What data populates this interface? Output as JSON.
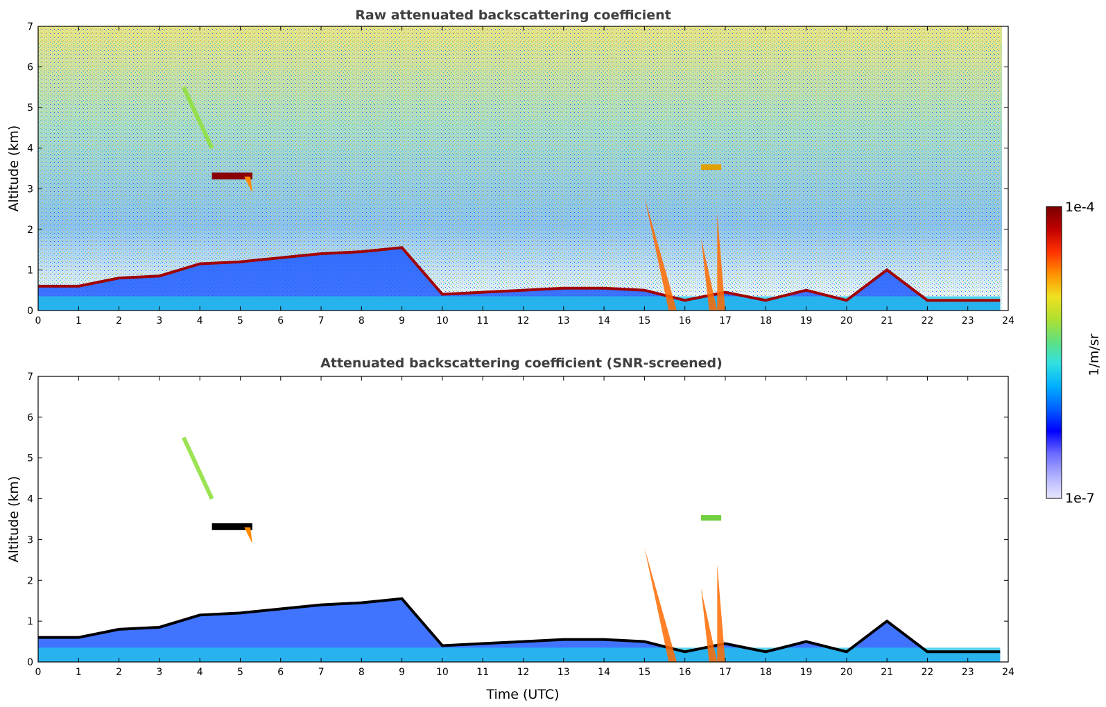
{
  "chart_data": [
    {
      "type": "heatmap",
      "title": "Raw attenuated backscattering coefficient",
      "xlabel": "",
      "ylabel": "Altitude (km)",
      "xlim": [
        0,
        24
      ],
      "ylim": [
        0,
        7
      ],
      "xticks": [
        "0",
        "1",
        "2",
        "3",
        "4",
        "5",
        "6",
        "7",
        "8",
        "9",
        "10",
        "11",
        "12",
        "13",
        "14",
        "15",
        "16",
        "17",
        "18",
        "19",
        "20",
        "21",
        "22",
        "23",
        "24"
      ],
      "yticks": [
        "0",
        "1",
        "2",
        "3",
        "4",
        "5",
        "6",
        "7"
      ],
      "features": [
        {
          "name": "boundary layer top",
          "time_utc": [
            0,
            1,
            2,
            3,
            4,
            5,
            6,
            7,
            8,
            9,
            10,
            11,
            12,
            13,
            14,
            15,
            16,
            17,
            18,
            19,
            20,
            21,
            22,
            23,
            23.8
          ],
          "altitude_km": [
            0.6,
            0.6,
            0.8,
            0.85,
            1.15,
            1.2,
            1.3,
            1.4,
            1.45,
            1.55,
            0.4,
            0.45,
            0.5,
            0.55,
            0.55,
            0.5,
            0.25,
            0.45,
            0.25,
            0.5,
            0.25,
            1.0,
            0.25,
            0.25,
            0.25
          ]
        },
        {
          "name": "cloud layer",
          "time_utc": [
            4.3,
            5.3
          ],
          "altitude_km": [
            3.3,
            3.4
          ]
        },
        {
          "name": "ice cloud fall streak",
          "time_utc": [
            3.6,
            4.3
          ],
          "altitude_km": [
            5.5,
            4.0
          ]
        },
        {
          "name": "cloud layer",
          "time_utc": [
            16.4,
            16.9
          ],
          "altitude_km": [
            3.4,
            3.6
          ]
        }
      ]
    },
    {
      "type": "heatmap",
      "title": "Attenuated backscattering coefficient (SNR-screened)",
      "xlabel": "Time (UTC)",
      "ylabel": "Altitude (km)",
      "xlim": [
        0,
        24
      ],
      "ylim": [
        0,
        7
      ],
      "xticks": [
        "0",
        "1",
        "2",
        "3",
        "4",
        "5",
        "6",
        "7",
        "8",
        "9",
        "10",
        "11",
        "12",
        "13",
        "14",
        "15",
        "16",
        "17",
        "18",
        "19",
        "20",
        "21",
        "22",
        "23",
        "24"
      ],
      "yticks": [
        "0",
        "1",
        "2",
        "3",
        "4",
        "5",
        "6",
        "7"
      ]
    }
  ],
  "colorbar": {
    "label": "1/m/sr",
    "min_label": "1e-7",
    "max_label": "1e-4",
    "colors": [
      "#e8e8ff",
      "#b0b0ff",
      "#6a6aff",
      "#0000ff",
      "#0060ff",
      "#00b0ff",
      "#30e0e0",
      "#60e080",
      "#b0e030",
      "#f0e020",
      "#ff9000",
      "#ff3000",
      "#c00000",
      "#7a0000"
    ]
  }
}
